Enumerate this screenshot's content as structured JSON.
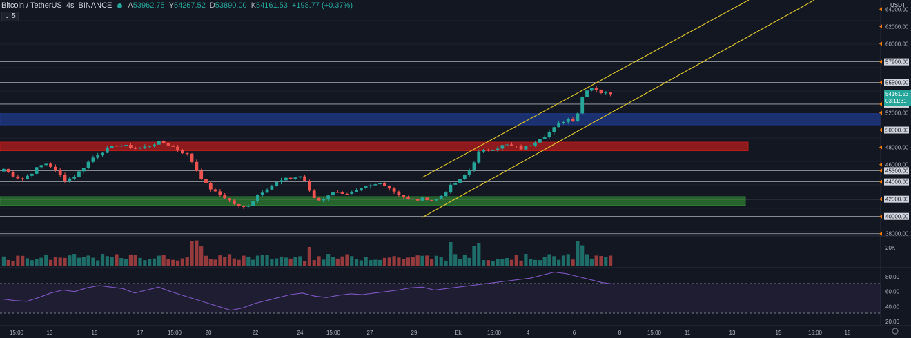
{
  "header": {
    "symbol": "Bitcoin / TetherUS",
    "interval": "4s",
    "exchange": "BINANCE",
    "open_label": "A",
    "open": "53962.75",
    "high_label": "Y",
    "high": "54267.52",
    "low_label": "D",
    "low": "53890.00",
    "close_label": "K",
    "close": "54161.53",
    "change": "+198.77 (+0.37%)"
  },
  "indicator_badge": "5",
  "price_axis": {
    "unit": "USDT",
    "ticks": [
      "64000.00",
      "62000.00",
      "60000.00",
      "57900.00",
      "55500.00",
      "53000.00",
      "52000.00",
      "50000.00",
      "48000.00",
      "46000.00",
      "45300.00",
      "44000.00",
      "42000.00",
      "40000.00",
      "38000.00"
    ],
    "highlighted": [
      "57900.00",
      "55500.00",
      "53000.00",
      "50000.00",
      "45300.00",
      "44000.00",
      "42000.00",
      "40000.00"
    ],
    "last_price": "54161.53",
    "countdown": "03:11:31"
  },
  "volume_axis": {
    "ticks": [
      "20K"
    ]
  },
  "rsi_axis": {
    "ticks": [
      "80.00",
      "60.00",
      "40.00",
      "20.00"
    ]
  },
  "time_axis": {
    "ticks": [
      "15:00",
      "13",
      "15",
      "17",
      "15:00",
      "20",
      "22",
      "24",
      "15:00",
      "27",
      "29",
      "Eki",
      "15:00",
      "4",
      "6",
      "8",
      "15:00",
      "11",
      "13",
      "15",
      "15:00",
      "18"
    ]
  },
  "colors": {
    "bull": "#26a69a",
    "bear": "#ef5350",
    "channel": "#d8c12a",
    "rsi": "#7e57c2",
    "support_zone": "#2e7d32",
    "resistance_zone": "#b71c1c",
    "blue_zone": "#1e3a8a"
  },
  "chart_data": {
    "type": "candlestick",
    "symbol": "BTC/USDT",
    "ylim": [
      37500,
      64500
    ],
    "horizontal_levels": [
      57900,
      55500,
      53000,
      50000,
      45300,
      44000,
      42000,
      40000,
      38000
    ],
    "zones": [
      {
        "kind": "blue",
        "from": 50600,
        "to": 51900
      },
      {
        "kind": "red",
        "from": 47600,
        "to": 48600
      },
      {
        "kind": "green",
        "from": 41300,
        "to": 42300
      }
    ],
    "close_path": [
      45500,
      44800,
      44300,
      44900,
      45800,
      46200,
      45100,
      44200,
      44600,
      45600,
      46700,
      47400,
      47900,
      48300,
      48100,
      47900,
      48000,
      48400,
      48600,
      48200,
      47600,
      47100,
      45200,
      43700,
      42800,
      42300,
      41600,
      40900,
      41500,
      42600,
      43300,
      43900,
      44300,
      44500,
      44700,
      42300,
      41800,
      42600,
      42900,
      42500,
      42800,
      43300,
      43600,
      43900,
      43200,
      42500,
      42000,
      41900,
      42100,
      41800,
      42600,
      43700,
      44300,
      45400,
      47400,
      47700,
      47900,
      48300,
      48100,
      47800,
      48400,
      49100,
      49700,
      50600,
      51300,
      51100,
      54600,
      55000,
      54300,
      54161
    ],
    "volume_max": 20000,
    "rsi": [
      50,
      48,
      47,
      52,
      58,
      62,
      60,
      65,
      68,
      66,
      64,
      58,
      62,
      66,
      60,
      55,
      50,
      45,
      40,
      35,
      38,
      44,
      48,
      52,
      56,
      58,
      54,
      52,
      55,
      57,
      56,
      58,
      60,
      62,
      65,
      66,
      62,
      64,
      66,
      68,
      70,
      72,
      74,
      76,
      78,
      82,
      86,
      84,
      80,
      76,
      72,
      70
    ]
  }
}
